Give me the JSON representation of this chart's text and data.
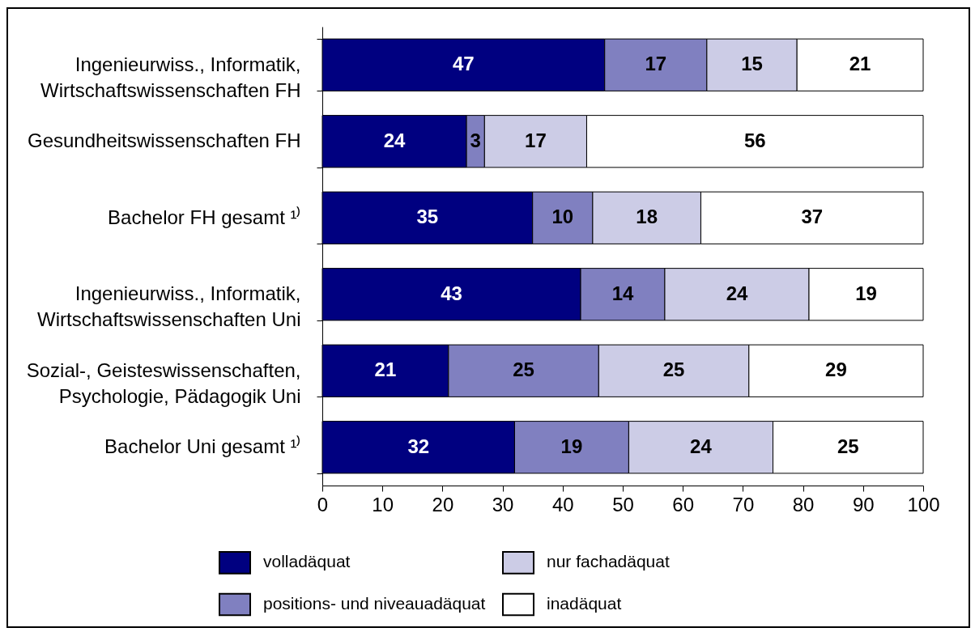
{
  "chart_data": {
    "type": "bar",
    "orientation": "horizontal",
    "stacked": true,
    "categories": [
      "Ingenieurwiss., Informatik,\nWirtschaftswissenschaften FH",
      "Gesundheitswissenschaften FH",
      "Bachelor FH gesamt ¹⁾",
      "Ingenieurwiss., Informatik,\nWirtschaftswissenschaften Uni",
      "Sozial-, Geisteswissenschaften,\nPsychologie, Pädagogik Uni",
      "Bachelor Uni gesamt ¹⁾"
    ],
    "series": [
      {
        "name": "volladäquat",
        "color": "#000080",
        "values": [
          47,
          24,
          35,
          43,
          21,
          32
        ]
      },
      {
        "name": "positions- und niveauadäquat",
        "color": "#8080c0",
        "values": [
          17,
          3,
          10,
          14,
          25,
          19
        ]
      },
      {
        "name": "nur fachadäquat",
        "color": "#ccccE6",
        "values": [
          15,
          17,
          18,
          24,
          25,
          24
        ]
      },
      {
        "name": "inadäquat",
        "color": "#ffffff",
        "values": [
          21,
          56,
          37,
          19,
          29,
          25
        ]
      }
    ],
    "xlim": [
      0,
      100
    ],
    "xticks": [
      0,
      10,
      20,
      30,
      40,
      50,
      60,
      70,
      80,
      90,
      100
    ],
    "data_labels": true,
    "legend": "bottom"
  }
}
